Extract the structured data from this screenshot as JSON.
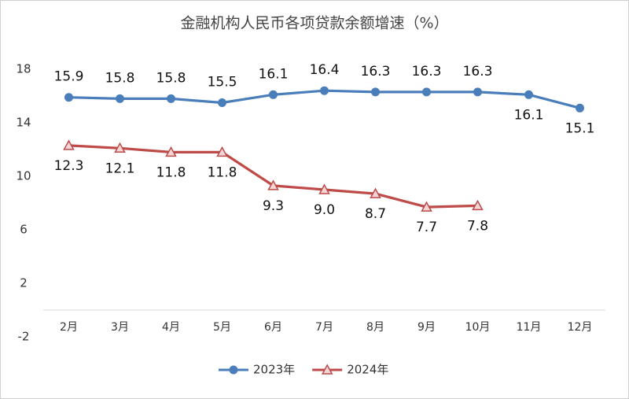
{
  "chart_data": {
    "type": "line",
    "title": "金融机构人民币各项贷款余额增速（%）",
    "categories": [
      "2月",
      "3月",
      "4月",
      "5月",
      "6月",
      "7月",
      "8月",
      "9月",
      "10月",
      "11月",
      "12月"
    ],
    "series": [
      {
        "name": "2023年",
        "color": "#4a7ebb",
        "marker": "circle",
        "values": [
          15.9,
          15.8,
          15.8,
          15.5,
          16.1,
          16.4,
          16.3,
          16.3,
          16.3,
          16.1,
          15.1
        ],
        "value_labels": [
          "15.9",
          "15.8",
          "15.8",
          "15.5",
          "16.1",
          "16.4",
          "16.3",
          "16.3",
          "16.3",
          "16.1",
          "15.1"
        ]
      },
      {
        "name": "2024年",
        "color": "#be4b48",
        "marker": "triangle",
        "values": [
          12.3,
          12.1,
          11.8,
          11.8,
          9.3,
          9.0,
          8.7,
          7.7,
          7.8,
          null,
          null
        ],
        "value_labels": [
          "12.3",
          "12.1",
          "11.8",
          "11.8",
          "9.3",
          "9.0",
          "8.7",
          "7.7",
          "7.8",
          null,
          null
        ]
      }
    ],
    "ylim": [
      -2,
      18
    ],
    "yticks": [
      -2,
      2,
      6,
      10,
      14,
      18
    ],
    "grid": false,
    "legend": "bottom"
  }
}
